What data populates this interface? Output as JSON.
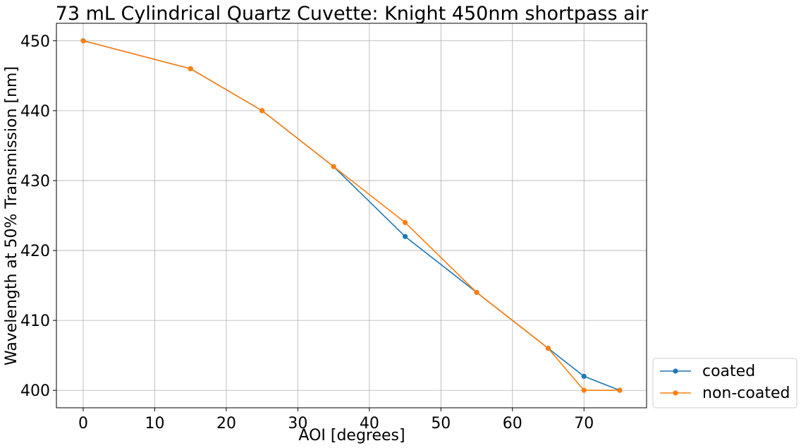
{
  "chart_data": {
    "type": "line",
    "title": "73 mL Cylindrical Quartz Cuvette: Knight 450nm shortpass air",
    "xlabel": "AOI [degrees]",
    "ylabel": "Wavelength at 50% Transmission [nm]",
    "xlim": [
      -3.75,
      78.75
    ],
    "ylim": [
      397.5,
      452.5
    ],
    "xticks": [
      0,
      10,
      20,
      30,
      40,
      50,
      60,
      70
    ],
    "yticks": [
      400,
      410,
      420,
      430,
      440,
      450
    ],
    "grid": true,
    "legend_position": "outside-bottom-right",
    "x": [
      0,
      15,
      25,
      35,
      45,
      55,
      65,
      70,
      75
    ],
    "series": [
      {
        "name": "coated",
        "color": "#1f77b4",
        "marker": "circle",
        "values": [
          450,
          446,
          440,
          432,
          422,
          414,
          406,
          402,
          400
        ]
      },
      {
        "name": "non-coated",
        "color": "#ff7f0e",
        "marker": "circle",
        "values": [
          450,
          446,
          440,
          432,
          424,
          414,
          406,
          400,
          400
        ]
      }
    ]
  }
}
